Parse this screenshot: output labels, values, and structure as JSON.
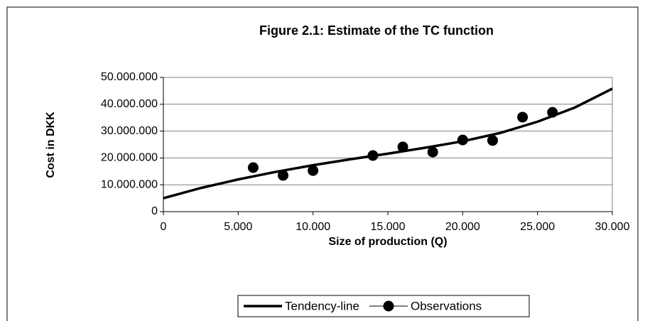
{
  "chart_data": {
    "type": "scatter",
    "title": "Figure 2.1: Estimate of the TC function",
    "x_label": "Size of production (Q)",
    "y_label": "Cost in DKK",
    "xlim": [
      0,
      30000
    ],
    "ylim": [
      0,
      50000000
    ],
    "xticks": [
      0,
      {
        "value": 5000,
        "label": "5.000"
      },
      {
        "value": 10000,
        "label": "10.000"
      },
      {
        "value": 15000,
        "label": "15.000"
      },
      {
        "value": 20000,
        "label": "20.000"
      },
      {
        "value": 25000,
        "label": "25.000"
      },
      {
        "value": 30000,
        "label": "30.000"
      }
    ],
    "yticks": [
      0,
      {
        "value": 10000000,
        "label": "10.000.000"
      },
      {
        "value": 20000000,
        "label": "20.000.000"
      },
      {
        "value": 30000000,
        "label": "30.000.000"
      },
      {
        "value": 40000000,
        "label": "40.000.000"
      },
      {
        "value": 50000000,
        "label": "50.000.000"
      }
    ],
    "grid": true,
    "legend": "bottom",
    "series": [
      {
        "name": "Tendency-line",
        "kind": "line",
        "color": "#000000",
        "x": [
          0,
          2500,
          5000,
          7500,
          10000,
          12500,
          15000,
          17500,
          20000,
          22500,
          25000,
          27500,
          30000
        ],
        "values": [
          5000000,
          8800000,
          12000000,
          14800000,
          17300000,
          19500000,
          21600000,
          23800000,
          26200000,
          29300000,
          33500000,
          38800000,
          45800000
        ]
      },
      {
        "name": "Observations",
        "kind": "marker",
        "color": "#000000",
        "x": [
          6000,
          8000,
          10000,
          14000,
          16000,
          18000,
          20000,
          22000,
          24000,
          26000
        ],
        "values": [
          16400000,
          13500000,
          15300000,
          20900000,
          24100000,
          22200000,
          26700000,
          26500000,
          35200000,
          37000000
        ]
      }
    ]
  }
}
